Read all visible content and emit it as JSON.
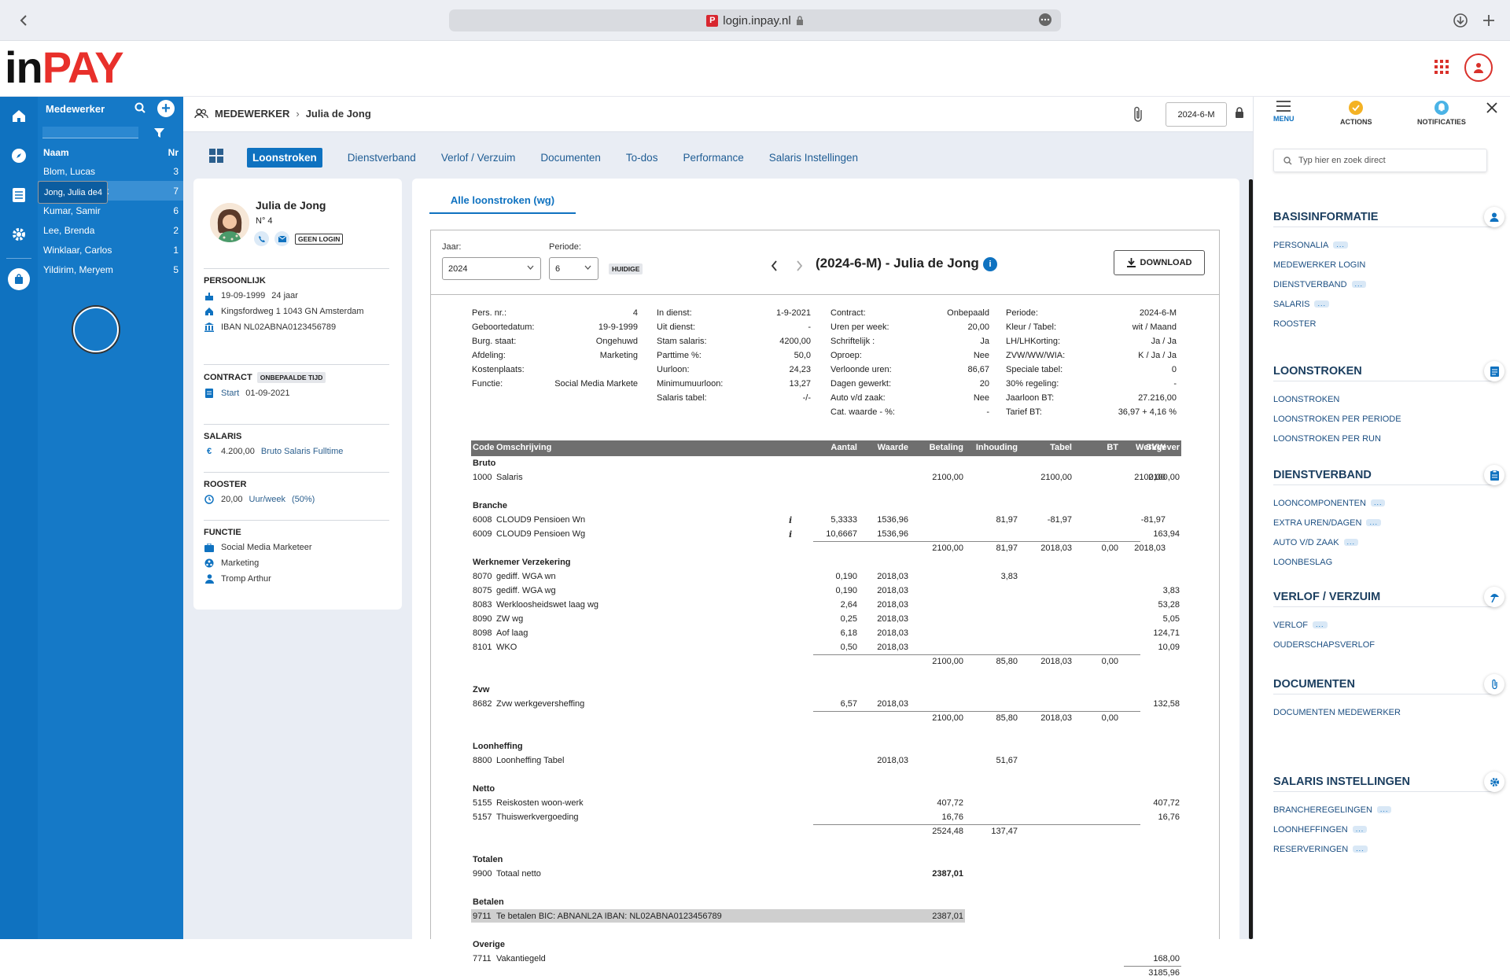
{
  "browser": {
    "url": "login.inpay.nl",
    "favicon_letter": "P"
  },
  "app": {
    "logo_in": "in",
    "logo_pay": "PAY",
    "brand_color": "#e8302b",
    "primary_color": "#0f72c0"
  },
  "employees_panel": {
    "title": "Medewerker",
    "col_name": "Naam",
    "col_nr": "Nr",
    "rows": [
      {
        "name": "Blom, Lucas",
        "nr": "3"
      },
      {
        "name": "Jong, Julia de",
        "nr": "4"
      },
      {
        "name": "Kowalski, Jarek",
        "nr": "7"
      },
      {
        "name": "Kumar, Samir",
        "nr": "6"
      },
      {
        "name": "Lee, Brenda",
        "nr": "2"
      },
      {
        "name": "Winklaar, Carlos",
        "nr": "1"
      },
      {
        "name": "Yildirim, Meryem",
        "nr": "5"
      }
    ]
  },
  "breadcrumb": {
    "root": "MEDEWERKER",
    "current": "Julia de Jong"
  },
  "period_selector": "2024-6-M",
  "tabs": [
    "Loonstroken",
    "Dienstverband",
    "Verlof / Verzuim",
    "Documenten",
    "To-dos",
    "Performance",
    "Salaris Instellingen"
  ],
  "employee_card": {
    "name": "Julia de Jong",
    "nr": "N° 4",
    "login_badge": "GEEN LOGIN",
    "persoonlijk": {
      "title": "PERSOONLIJK",
      "dob": "19-09-1999",
      "age": "24 jaar",
      "address": "Kingsfordweg 1 1043 GN Amsterdam",
      "iban": "IBAN NL02ABNA0123456789"
    },
    "contract": {
      "title": "CONTRACT",
      "type": "ONBEPAALDE TIJD",
      "start_label": "Start",
      "start": "01-09-2021"
    },
    "salaris": {
      "title": "SALARIS",
      "amount": "4.200,00",
      "desc": "Bruto Salaris Fulltime"
    },
    "rooster": {
      "title": "ROOSTER",
      "hours": "20,00",
      "unit": "Uur/week",
      "pct": "(50%)"
    },
    "functie": {
      "title": "FUNCTIE",
      "role": "Social Media Marketeer",
      "department": "Marketing",
      "manager": "Tromp Arthur"
    }
  },
  "payslip": {
    "subtab": "Alle loonstroken (wg)",
    "jaar_label": "Jaar:",
    "jaar": "2024",
    "periode_label": "Periode:",
    "periode": "6",
    "current_badge": "HUIDIGE",
    "title": "(2024-6-M) - Julia de Jong",
    "download": "DOWNLOAD",
    "info_col1": [
      [
        "Pers. nr.:",
        "4"
      ],
      [
        "Geboortedatum:",
        "19-9-1999"
      ],
      [
        "Burg. staat:",
        "Ongehuwd"
      ],
      [
        "Afdeling:",
        "Marketing"
      ],
      [
        "Kostenplaats:",
        ""
      ],
      [
        "Functie:",
        "Social Media Markete"
      ]
    ],
    "info_col2": [
      [
        "In dienst:",
        "1-9-2021"
      ],
      [
        "Uit dienst:",
        "-"
      ],
      [
        "Stam salaris:",
        "4200,00"
      ],
      [
        "Parttime %:",
        "50,0"
      ],
      [
        "Uurloon:",
        "24,23"
      ],
      [
        "Minimumuurloon:",
        "13,27"
      ],
      [
        "Salaris tabel:",
        "-/-"
      ]
    ],
    "info_col3": [
      [
        "Contract:",
        "Onbepaald"
      ],
      [
        "Uren per week:",
        "20,00"
      ],
      [
        "Schriftelijk :",
        "Ja"
      ],
      [
        "Oproep:",
        "Nee"
      ],
      [
        "Verloonde uren:",
        "86,67"
      ],
      [
        "Dagen gewerkt:",
        "20"
      ],
      [
        "Auto v/d zaak:",
        "Nee"
      ],
      [
        "Cat. waarde - %:",
        "-"
      ]
    ],
    "info_col4": [
      [
        "Periode:",
        "2024-6-M"
      ],
      [
        "Kleur / Tabel:",
        "wit / Maand"
      ],
      [
        "LH/LHKorting:",
        "Ja / Ja"
      ],
      [
        "ZVW/WW/WIA:",
        "K / Ja / Ja"
      ],
      [
        "Speciale tabel:",
        "0"
      ],
      [
        "30% regeling:",
        "-"
      ],
      [
        "Jaarloon BT:",
        "27.216,00"
      ],
      [
        "Tarief BT:",
        "36,97 + 4,16 %"
      ]
    ],
    "headers": [
      "Code",
      "Omschrijving",
      "Aantal",
      "Waarde",
      "Betaling",
      "Inhouding",
      "Tabel",
      "BT",
      "SVW",
      "Werkgever"
    ],
    "rows": [
      {
        "t": "g",
        "label": "Bruto"
      },
      {
        "t": "r",
        "code": "1000",
        "desc": "Salaris",
        "aantal": "",
        "waarde": "",
        "betaling": "2100,00",
        "inhouding": "",
        "tabel": "2100,00",
        "bt": "",
        "svw": "2100,00",
        "werkgever": "2100,00"
      },
      {
        "t": "s"
      },
      {
        "t": "g",
        "label": "Branche"
      },
      {
        "t": "r",
        "code": "6008",
        "desc": "CLOUD9 Pensioen Wn",
        "info": true,
        "aantal": "5,3333",
        "waarde": "1536,96",
        "betaling": "",
        "inhouding": "81,97",
        "tabel": "-81,97",
        "bt": "",
        "svw": "-81,97",
        "werkgever": ""
      },
      {
        "t": "r",
        "code": "6009",
        "desc": "CLOUD9 Pensioen Wg",
        "info": true,
        "aantal": "10,6667",
        "waarde": "1536,96",
        "betaling": "",
        "inhouding": "",
        "tabel": "",
        "bt": "",
        "svw": "",
        "werkgever": "163,94"
      },
      {
        "t": "sub",
        "betaling": "2100,00",
        "inhouding": "81,97",
        "tabel": "2018,03",
        "bt": "0,00",
        "svw": "2018,03"
      },
      {
        "t": "g",
        "label": "Werknemer Verzekering"
      },
      {
        "t": "r",
        "code": "8070",
        "desc": "gediff. WGA wn",
        "aantal": "0,190",
        "waarde": "2018,03",
        "betaling": "",
        "inhouding": "3,83",
        "tabel": "",
        "bt": "",
        "svw": "",
        "werkgever": ""
      },
      {
        "t": "r",
        "code": "8075",
        "desc": "gediff. WGA wg",
        "aantal": "0,190",
        "waarde": "2018,03",
        "betaling": "",
        "inhouding": "",
        "tabel": "",
        "bt": "",
        "svw": "",
        "werkgever": "3,83"
      },
      {
        "t": "r",
        "code": "8083",
        "desc": "Werkloosheidswet laag wg",
        "aantal": "2,64",
        "waarde": "2018,03",
        "betaling": "",
        "inhouding": "",
        "tabel": "",
        "bt": "",
        "svw": "",
        "werkgever": "53,28"
      },
      {
        "t": "r",
        "code": "8090",
        "desc": "ZW wg",
        "aantal": "0,25",
        "waarde": "2018,03",
        "betaling": "",
        "inhouding": "",
        "tabel": "",
        "bt": "",
        "svw": "",
        "werkgever": "5,05"
      },
      {
        "t": "r",
        "code": "8098",
        "desc": "Aof laag",
        "aantal": "6,18",
        "waarde": "2018,03",
        "betaling": "",
        "inhouding": "",
        "tabel": "",
        "bt": "",
        "svw": "",
        "werkgever": "124,71"
      },
      {
        "t": "r",
        "code": "8101",
        "desc": "WKO",
        "aantal": "0,50",
        "waarde": "2018,03",
        "betaling": "",
        "inhouding": "",
        "tabel": "",
        "bt": "",
        "svw": "",
        "werkgever": "10,09"
      },
      {
        "t": "sub",
        "betaling": "2100,00",
        "inhouding": "85,80",
        "tabel": "2018,03",
        "bt": "0,00",
        "svw": ""
      },
      {
        "t": "s"
      },
      {
        "t": "g",
        "label": "Zvw"
      },
      {
        "t": "r",
        "code": "8682",
        "desc": "Zvw werkgeversheffing",
        "aantal": "6,57",
        "waarde": "2018,03",
        "betaling": "",
        "inhouding": "",
        "tabel": "",
        "bt": "",
        "svw": "",
        "werkgever": "132,58"
      },
      {
        "t": "sub",
        "betaling": "2100,00",
        "inhouding": "85,80",
        "tabel": "2018,03",
        "bt": "0,00",
        "svw": ""
      },
      {
        "t": "s"
      },
      {
        "t": "g",
        "label": "Loonheffing"
      },
      {
        "t": "r",
        "code": "8800",
        "desc": "Loonheffing Tabel",
        "aantal": "",
        "waarde": "2018,03",
        "betaling": "",
        "inhouding": "51,67",
        "tabel": "",
        "bt": "",
        "svw": "",
        "werkgever": ""
      },
      {
        "t": "s"
      },
      {
        "t": "g",
        "label": "Netto"
      },
      {
        "t": "r",
        "code": "5155",
        "desc": "Reiskosten woon-werk",
        "aantal": "",
        "waarde": "",
        "betaling": "407,72",
        "inhouding": "",
        "tabel": "",
        "bt": "",
        "svw": "",
        "werkgever": "407,72"
      },
      {
        "t": "r",
        "code": "5157",
        "desc": "Thuiswerkvergoeding",
        "aantal": "",
        "waarde": "",
        "betaling": "16,76",
        "inhouding": "",
        "tabel": "",
        "bt": "",
        "svw": "",
        "werkgever": "16,76"
      },
      {
        "t": "sub",
        "betaling": "2524,48",
        "inhouding": "137,47",
        "tabel": "",
        "bt": "",
        "svw": ""
      },
      {
        "t": "s"
      },
      {
        "t": "g",
        "label": "Totalen"
      },
      {
        "t": "r",
        "code": "9900",
        "desc": "Totaal netto",
        "aantal": "",
        "waarde": "",
        "betaling": "2387,01",
        "bold": true,
        "inhouding": "",
        "tabel": "",
        "bt": "",
        "svw": "",
        "werkgever": ""
      },
      {
        "t": "s"
      },
      {
        "t": "g",
        "label": "Betalen"
      },
      {
        "t": "r",
        "code": "9711",
        "desc": "Te betalen BIC: ABNANL2A IBAN: NL02ABNA0123456789",
        "hl": true,
        "aantal": "",
        "waarde": "",
        "betaling": "2387,01",
        "inhouding": "",
        "tabel": "",
        "bt": "",
        "svw": "",
        "werkgever": ""
      },
      {
        "t": "s"
      },
      {
        "t": "g",
        "label": "Overige"
      },
      {
        "t": "r",
        "code": "7711",
        "desc": "Vakantiegeld",
        "aantal": "",
        "waarde": "",
        "betaling": "",
        "inhouding": "",
        "tabel": "",
        "bt": "",
        "svw": "",
        "werkgever": "168,00"
      },
      {
        "t": "subw",
        "werkgever": "3185,96"
      }
    ]
  },
  "right_sidebar": {
    "tabs": [
      {
        "label": "MENU",
        "icon": "hamburger-icon"
      },
      {
        "label": "ACTIONS",
        "icon": "check-circle-icon"
      },
      {
        "label": "NOTIFICATIES",
        "icon": "bell-icon"
      }
    ],
    "search_placeholder": "Typ hier en zoek direct",
    "sections": [
      {
        "title": "BASISINFORMATIE",
        "icon": "person-icon",
        "items": [
          {
            "label": "PERSONALIA",
            "dots": true
          },
          {
            "label": "MEDEWERKER LOGIN",
            "dots": false
          },
          {
            "label": "DIENSTVERBAND",
            "dots": true
          },
          {
            "label": "SALARIS",
            "dots": true
          },
          {
            "label": "ROOSTER",
            "dots": false
          }
        ]
      },
      {
        "title": "LOONSTROKEN",
        "icon": "payslip-icon",
        "items": [
          {
            "label": "LOONSTROKEN",
            "dots": false
          },
          {
            "label": "LOONSTROKEN PER PERIODE",
            "dots": false
          },
          {
            "label": "LOONSTROKEN PER RUN",
            "dots": false
          }
        ]
      },
      {
        "title": "DIENSTVERBAND",
        "icon": "clipboard-icon",
        "items": [
          {
            "label": "LOONCOMPONENTEN",
            "dots": true
          },
          {
            "label": "EXTRA UREN/DAGEN",
            "dots": true
          },
          {
            "label": "AUTO V/D ZAAK",
            "dots": true
          },
          {
            "label": "LOONBESLAG",
            "dots": false
          }
        ]
      },
      {
        "title": "VERLOF / VERZUIM",
        "icon": "beach-icon",
        "items": [
          {
            "label": "VERLOF",
            "dots": true
          },
          {
            "label": "OUDERSCHAPSVERLOF",
            "dots": false
          }
        ]
      },
      {
        "title": "DOCUMENTEN",
        "icon": "paperclip-icon",
        "items": [
          {
            "label": "DOCUMENTEN MEDEWERKER",
            "dots": false
          }
        ]
      },
      {
        "title": "SALARIS INSTELLINGEN",
        "icon": "gear-icon",
        "items": [
          {
            "label": "BRANCHEREGELINGEN",
            "dots": true
          },
          {
            "label": "LOONHEFFINGEN",
            "dots": true
          },
          {
            "label": "RESERVERINGEN",
            "dots": true
          }
        ]
      }
    ]
  }
}
